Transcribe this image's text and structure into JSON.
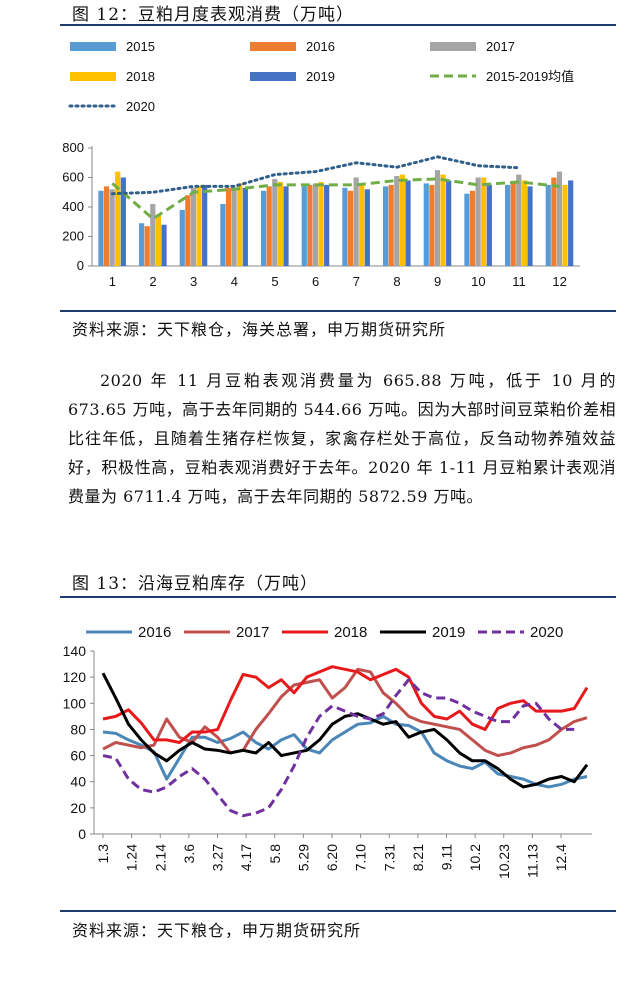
{
  "fig12": {
    "title": "图 12：豆粕月度表观消费（万吨）",
    "source": "资料来源：天下粮仓，海关总署，申万期货研究所"
  },
  "paragraph": "2020 年 11 月豆粕表观消费量为 665.88 万吨，低于 10 月的 673.65 万吨，高于去年同期的 544.66 万吨。因为大部时间豆菜粕价差相比往年低，且随着生猪存栏恢复，家禽存栏处于高位，反刍动物养殖效益好，积极性高，豆粕表观消费好于去年。2020 年 1-11 月豆粕累计表观消费量为 6711.4 万吨，高于去年同期的 5872.59 万吨。",
  "fig13": {
    "title": "图 13：沿海豆粕库存（万吨）",
    "source": "资料来源：天下粮仓，申万期货研究所"
  },
  "colors": {
    "s2015": "#5b9bd5",
    "s2016": "#ed7d31",
    "s2017": "#a5a5a5",
    "s2018": "#ffc000",
    "s2019": "#4472c4",
    "avg": "#70ad47",
    "s2020": "#2f5f8a",
    "l2016": "#4a86b8",
    "l2017": "#c0504d",
    "l2018": "#e8191b",
    "l2019": "#000000",
    "l2020": "#7030a0",
    "rule": "#1f3b70"
  },
  "chart_data": [
    {
      "type": "bar",
      "categories": [
        "1",
        "2",
        "3",
        "4",
        "5",
        "6",
        "7",
        "8",
        "9",
        "10",
        "11",
        "12"
      ],
      "ylim": [
        0,
        800
      ],
      "yticks": [
        "0",
        "200",
        "400",
        "600",
        "800"
      ],
      "grid": false,
      "legend": "top",
      "series": [
        {
          "name": "2015",
          "kind": "bar",
          "color": "#5b9bd5",
          "values": [
            510,
            290,
            380,
            420,
            510,
            540,
            530,
            540,
            560,
            490,
            550,
            550
          ]
        },
        {
          "name": "2016",
          "kind": "bar",
          "color": "#ed7d31",
          "values": [
            540,
            270,
            480,
            530,
            540,
            550,
            510,
            550,
            550,
            510,
            560,
            600
          ]
        },
        {
          "name": "2017",
          "kind": "bar",
          "color": "#a5a5a5",
          "values": [
            520,
            420,
            530,
            520,
            590,
            560,
            600,
            610,
            650,
            600,
            620,
            640
          ]
        },
        {
          "name": "2018",
          "kind": "bar",
          "color": "#ffc000",
          "values": [
            640,
            350,
            540,
            560,
            570,
            570,
            560,
            620,
            620,
            600,
            580,
            550
          ]
        },
        {
          "name": "2019",
          "kind": "bar",
          "color": "#4472c4",
          "values": [
            600,
            280,
            550,
            530,
            540,
            550,
            520,
            580,
            580,
            550,
            540,
            580
          ]
        },
        {
          "name": "2015-2019均值",
          "kind": "line",
          "style": "dashed",
          "color": "#70ad47",
          "values": [
            560,
            320,
            500,
            520,
            550,
            550,
            550,
            580,
            590,
            550,
            570,
            540
          ]
        },
        {
          "name": "2020",
          "kind": "line",
          "style": "dotted",
          "color": "#2f5f8a",
          "values": [
            490,
            500,
            540,
            540,
            620,
            640,
            700,
            670,
            740,
            680,
            666,
            null
          ]
        }
      ]
    },
    {
      "type": "line",
      "x_labels": [
        "1.3",
        "1.24",
        "2.14",
        "3.6",
        "3.27",
        "4.17",
        "5.8",
        "5.29",
        "6.20",
        "7.10",
        "7.31",
        "8.21",
        "9.11",
        "10.2",
        "10.23",
        "11.13",
        "12.4"
      ],
      "ylim": [
        0,
        140
      ],
      "yticks": [
        "0",
        "20",
        "40",
        "60",
        "80",
        "100",
        "120",
        "140"
      ],
      "grid": false,
      "legend": "top",
      "series": [
        {
          "name": "2016",
          "color": "#4a86b8",
          "values": [
            78,
            77,
            72,
            68,
            63,
            42,
            58,
            74,
            74,
            70,
            73,
            78,
            70,
            65,
            72,
            76,
            65,
            62,
            72,
            78,
            84,
            85,
            90,
            84,
            83,
            78,
            62,
            56,
            52,
            50,
            55,
            46,
            44,
            42,
            38,
            36,
            38,
            42,
            44
          ]
        },
        {
          "name": "2017",
          "color": "#c0504d",
          "values": [
            65,
            70,
            68,
            66,
            68,
            88,
            74,
            70,
            82,
            74,
            62,
            64,
            80,
            92,
            105,
            114,
            116,
            118,
            104,
            112,
            126,
            124,
            108,
            100,
            90,
            86,
            84,
            82,
            80,
            72,
            64,
            60,
            62,
            66,
            68,
            72,
            80,
            86,
            89
          ]
        },
        {
          "name": "2018",
          "color": "#e8191b",
          "values": [
            88,
            90,
            95,
            85,
            72,
            72,
            70,
            78,
            78,
            80,
            102,
            122,
            120,
            112,
            118,
            108,
            120,
            124,
            128,
            126,
            124,
            118,
            122,
            126,
            120,
            100,
            90,
            88,
            94,
            84,
            80,
            96,
            100,
            102,
            94,
            94,
            94,
            96,
            112
          ]
        },
        {
          "name": "2019",
          "color": "#000000",
          "values": [
            123,
            104,
            84,
            72,
            62,
            56,
            64,
            70,
            65,
            64,
            62,
            64,
            62,
            70,
            60,
            62,
            64,
            72,
            84,
            90,
            92,
            88,
            84,
            86,
            74,
            78,
            80,
            72,
            62,
            56,
            56,
            50,
            42,
            36,
            38,
            42,
            44,
            40,
            53
          ]
        },
        {
          "name": "2020",
          "color": "#7030a0",
          "style": "dashed",
          "values": [
            60,
            58,
            42,
            34,
            32,
            36,
            44,
            50,
            42,
            30,
            18,
            14,
            16,
            20,
            34,
            52,
            74,
            90,
            98,
            94,
            90,
            88,
            92,
            106,
            118,
            108,
            104,
            104,
            100,
            94,
            90,
            86,
            86,
            98,
            100,
            88,
            80,
            80,
            null
          ]
        }
      ]
    }
  ]
}
